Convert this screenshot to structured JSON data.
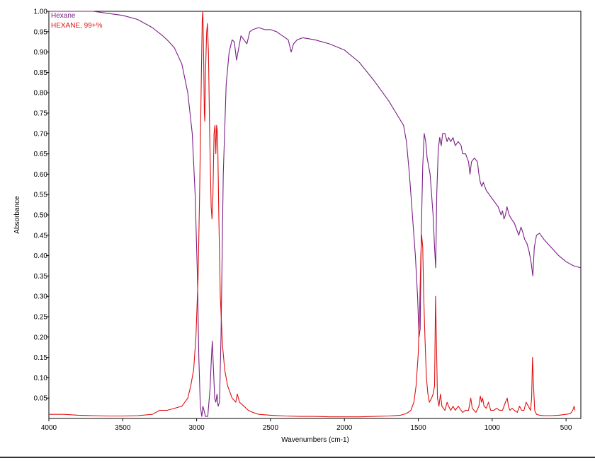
{
  "chart_data": {
    "type": "line",
    "xlabel": "Wavenumbers (cm-1)",
    "ylabel": "Absorbance",
    "xlim": [
      4000,
      400
    ],
    "ylim": [
      0,
      1.0
    ],
    "x_reversed": true,
    "x_ticks": [
      4000,
      3500,
      3000,
      2500,
      2000,
      1500,
      1000,
      500
    ],
    "y_ticks": [
      0.05,
      0.1,
      0.15,
      0.2,
      0.25,
      0.3,
      0.35,
      0.4,
      0.45,
      0.5,
      0.55,
      0.6,
      0.65,
      0.7,
      0.75,
      0.8,
      0.85,
      0.9,
      0.95,
      1.0
    ],
    "grid": false,
    "legend_position": "top-left",
    "series": [
      {
        "name": "Hexane",
        "color": "#7a1f86",
        "points": [
          [
            4000,
            1.0
          ],
          [
            3800,
            1.0
          ],
          [
            3700,
            1.0
          ],
          [
            3600,
            0.995
          ],
          [
            3500,
            0.99
          ],
          [
            3400,
            0.98
          ],
          [
            3300,
            0.96
          ],
          [
            3230,
            0.94
          ],
          [
            3200,
            0.93
          ],
          [
            3150,
            0.91
          ],
          [
            3100,
            0.87
          ],
          [
            3060,
            0.8
          ],
          [
            3030,
            0.7
          ],
          [
            3010,
            0.55
          ],
          [
            2995,
            0.35
          ],
          [
            2985,
            0.15
          ],
          [
            2975,
            0.03
          ],
          [
            2965,
            0.005
          ],
          [
            2958,
            0.03
          ],
          [
            2950,
            0.02
          ],
          [
            2940,
            0.005
          ],
          [
            2925,
            0.005
          ],
          [
            2910,
            0.07
          ],
          [
            2900,
            0.15
          ],
          [
            2894,
            0.19
          ],
          [
            2886,
            0.12
          ],
          [
            2878,
            0.05
          ],
          [
            2870,
            0.04
          ],
          [
            2862,
            0.06
          ],
          [
            2855,
            0.03
          ],
          [
            2845,
            0.04
          ],
          [
            2835,
            0.2
          ],
          [
            2820,
            0.6
          ],
          [
            2800,
            0.82
          ],
          [
            2780,
            0.9
          ],
          [
            2760,
            0.93
          ],
          [
            2745,
            0.925
          ],
          [
            2730,
            0.88
          ],
          [
            2720,
            0.9
          ],
          [
            2700,
            0.94
          ],
          [
            2680,
            0.93
          ],
          [
            2660,
            0.92
          ],
          [
            2640,
            0.95
          ],
          [
            2620,
            0.955
          ],
          [
            2580,
            0.96
          ],
          [
            2540,
            0.955
          ],
          [
            2500,
            0.955
          ],
          [
            2460,
            0.95
          ],
          [
            2420,
            0.94
          ],
          [
            2380,
            0.93
          ],
          [
            2360,
            0.9
          ],
          [
            2345,
            0.92
          ],
          [
            2320,
            0.93
          ],
          [
            2280,
            0.935
          ],
          [
            2200,
            0.93
          ],
          [
            2100,
            0.92
          ],
          [
            2000,
            0.905
          ],
          [
            1900,
            0.875
          ],
          [
            1800,
            0.83
          ],
          [
            1700,
            0.78
          ],
          [
            1650,
            0.75
          ],
          [
            1600,
            0.72
          ],
          [
            1580,
            0.68
          ],
          [
            1560,
            0.6
          ],
          [
            1540,
            0.5
          ],
          [
            1520,
            0.4
          ],
          [
            1505,
            0.3
          ],
          [
            1495,
            0.2
          ],
          [
            1487,
            0.22
          ],
          [
            1480,
            0.45
          ],
          [
            1470,
            0.62
          ],
          [
            1460,
            0.7
          ],
          [
            1450,
            0.68
          ],
          [
            1440,
            0.64
          ],
          [
            1430,
            0.62
          ],
          [
            1420,
            0.6
          ],
          [
            1400,
            0.5
          ],
          [
            1390,
            0.42
          ],
          [
            1382,
            0.37
          ],
          [
            1375,
            0.55
          ],
          [
            1365,
            0.66
          ],
          [
            1355,
            0.69
          ],
          [
            1345,
            0.67
          ],
          [
            1335,
            0.7
          ],
          [
            1320,
            0.7
          ],
          [
            1305,
            0.68
          ],
          [
            1295,
            0.69
          ],
          [
            1280,
            0.68
          ],
          [
            1265,
            0.69
          ],
          [
            1250,
            0.67
          ],
          [
            1230,
            0.68
          ],
          [
            1210,
            0.67
          ],
          [
            1200,
            0.65
          ],
          [
            1180,
            0.65
          ],
          [
            1160,
            0.63
          ],
          [
            1150,
            0.6
          ],
          [
            1140,
            0.63
          ],
          [
            1120,
            0.64
          ],
          [
            1100,
            0.63
          ],
          [
            1090,
            0.6
          ],
          [
            1080,
            0.58
          ],
          [
            1070,
            0.57
          ],
          [
            1060,
            0.58
          ],
          [
            1040,
            0.56
          ],
          [
            1020,
            0.55
          ],
          [
            1000,
            0.54
          ],
          [
            980,
            0.53
          ],
          [
            960,
            0.52
          ],
          [
            940,
            0.5
          ],
          [
            930,
            0.51
          ],
          [
            920,
            0.49
          ],
          [
            910,
            0.5
          ],
          [
            900,
            0.52
          ],
          [
            885,
            0.5
          ],
          [
            870,
            0.49
          ],
          [
            850,
            0.48
          ],
          [
            830,
            0.46
          ],
          [
            820,
            0.45
          ],
          [
            805,
            0.47
          ],
          [
            795,
            0.46
          ],
          [
            780,
            0.44
          ],
          [
            765,
            0.43
          ],
          [
            750,
            0.41
          ],
          [
            735,
            0.38
          ],
          [
            725,
            0.35
          ],
          [
            715,
            0.42
          ],
          [
            700,
            0.45
          ],
          [
            680,
            0.455
          ],
          [
            650,
            0.44
          ],
          [
            600,
            0.42
          ],
          [
            550,
            0.4
          ],
          [
            500,
            0.385
          ],
          [
            450,
            0.375
          ],
          [
            400,
            0.37
          ]
        ]
      },
      {
        "name": "HEXANE, 99+%",
        "color": "#e01010",
        "points": [
          [
            4000,
            0.01
          ],
          [
            3900,
            0.01
          ],
          [
            3800,
            0.008
          ],
          [
            3700,
            0.007
          ],
          [
            3600,
            0.006
          ],
          [
            3500,
            0.006
          ],
          [
            3400,
            0.007
          ],
          [
            3300,
            0.01
          ],
          [
            3250,
            0.02
          ],
          [
            3200,
            0.02
          ],
          [
            3150,
            0.025
          ],
          [
            3100,
            0.03
          ],
          [
            3060,
            0.05
          ],
          [
            3040,
            0.08
          ],
          [
            3020,
            0.12
          ],
          [
            3005,
            0.2
          ],
          [
            2990,
            0.35
          ],
          [
            2980,
            0.55
          ],
          [
            2970,
            0.8
          ],
          [
            2962,
            0.98
          ],
          [
            2958,
            1.0
          ],
          [
            2953,
            0.9
          ],
          [
            2948,
            0.75
          ],
          [
            2945,
            0.73
          ],
          [
            2940,
            0.85
          ],
          [
            2932,
            0.95
          ],
          [
            2927,
            0.97
          ],
          [
            2920,
            0.9
          ],
          [
            2912,
            0.7
          ],
          [
            2902,
            0.52
          ],
          [
            2896,
            0.49
          ],
          [
            2890,
            0.55
          ],
          [
            2882,
            0.7
          ],
          [
            2876,
            0.72
          ],
          [
            2870,
            0.65
          ],
          [
            2865,
            0.72
          ],
          [
            2858,
            0.7
          ],
          [
            2850,
            0.5
          ],
          [
            2840,
            0.3
          ],
          [
            2825,
            0.18
          ],
          [
            2810,
            0.12
          ],
          [
            2790,
            0.08
          ],
          [
            2760,
            0.05
          ],
          [
            2735,
            0.04
          ],
          [
            2725,
            0.06
          ],
          [
            2710,
            0.04
          ],
          [
            2680,
            0.03
          ],
          [
            2650,
            0.02
          ],
          [
            2620,
            0.015
          ],
          [
            2580,
            0.01
          ],
          [
            2500,
            0.008
          ],
          [
            2400,
            0.006
          ],
          [
            2300,
            0.005
          ],
          [
            2200,
            0.005
          ],
          [
            2100,
            0.004
          ],
          [
            2000,
            0.004
          ],
          [
            1900,
            0.004
          ],
          [
            1800,
            0.005
          ],
          [
            1700,
            0.006
          ],
          [
            1620,
            0.008
          ],
          [
            1580,
            0.012
          ],
          [
            1550,
            0.02
          ],
          [
            1530,
            0.04
          ],
          [
            1515,
            0.08
          ],
          [
            1500,
            0.16
          ],
          [
            1490,
            0.28
          ],
          [
            1483,
            0.4
          ],
          [
            1477,
            0.45
          ],
          [
            1470,
            0.42
          ],
          [
            1463,
            0.3
          ],
          [
            1455,
            0.2
          ],
          [
            1445,
            0.1
          ],
          [
            1435,
            0.06
          ],
          [
            1425,
            0.04
          ],
          [
            1410,
            0.05
          ],
          [
            1400,
            0.06
          ],
          [
            1390,
            0.08
          ],
          [
            1383,
            0.3
          ],
          [
            1378,
            0.2
          ],
          [
            1370,
            0.05
          ],
          [
            1360,
            0.03
          ],
          [
            1350,
            0.06
          ],
          [
            1340,
            0.03
          ],
          [
            1320,
            0.02
          ],
          [
            1305,
            0.04
          ],
          [
            1295,
            0.03
          ],
          [
            1280,
            0.02
          ],
          [
            1265,
            0.03
          ],
          [
            1250,
            0.02
          ],
          [
            1230,
            0.03
          ],
          [
            1200,
            0.015
          ],
          [
            1180,
            0.02
          ],
          [
            1160,
            0.02
          ],
          [
            1145,
            0.05
          ],
          [
            1135,
            0.025
          ],
          [
            1110,
            0.015
          ],
          [
            1090,
            0.03
          ],
          [
            1080,
            0.055
          ],
          [
            1072,
            0.04
          ],
          [
            1065,
            0.05
          ],
          [
            1055,
            0.03
          ],
          [
            1040,
            0.025
          ],
          [
            1025,
            0.04
          ],
          [
            1010,
            0.02
          ],
          [
            990,
            0.02
          ],
          [
            970,
            0.025
          ],
          [
            950,
            0.02
          ],
          [
            930,
            0.02
          ],
          [
            910,
            0.04
          ],
          [
            898,
            0.05
          ],
          [
            890,
            0.03
          ],
          [
            880,
            0.02
          ],
          [
            865,
            0.025
          ],
          [
            850,
            0.02
          ],
          [
            830,
            0.015
          ],
          [
            815,
            0.03
          ],
          [
            800,
            0.02
          ],
          [
            785,
            0.02
          ],
          [
            770,
            0.04
          ],
          [
            755,
            0.03
          ],
          [
            740,
            0.02
          ],
          [
            733,
            0.05
          ],
          [
            727,
            0.15
          ],
          [
            720,
            0.08
          ],
          [
            712,
            0.02
          ],
          [
            700,
            0.01
          ],
          [
            680,
            0.008
          ],
          [
            650,
            0.007
          ],
          [
            600,
            0.007
          ],
          [
            550,
            0.008
          ],
          [
            500,
            0.01
          ],
          [
            470,
            0.012
          ],
          [
            455,
            0.02
          ],
          [
            445,
            0.03
          ],
          [
            440,
            0.02
          ]
        ]
      }
    ]
  }
}
